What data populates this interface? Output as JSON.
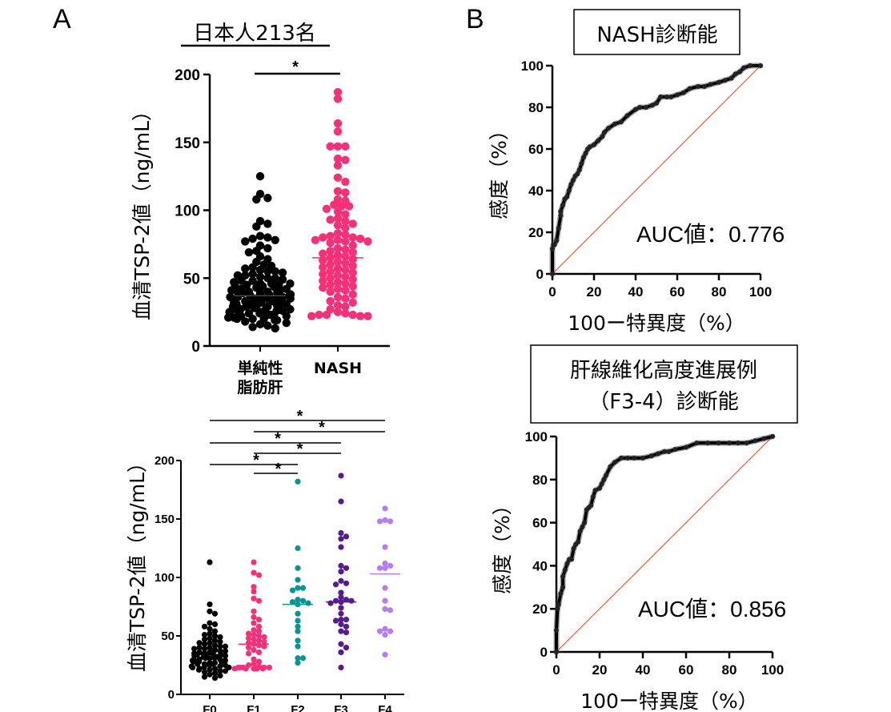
{
  "panel_labels": {
    "a": "A",
    "b": "B"
  },
  "chart_data": [
    {
      "id": "nafld-vs-nash",
      "type": "scatter",
      "title": "日本人213名",
      "xlabel": "",
      "ylabel": "血清TSP-2値（ng/mL）",
      "ylim": [
        0,
        200
      ],
      "yticks": [
        0,
        50,
        100,
        150,
        200
      ],
      "categories": [
        "単純性\n脂肪肝",
        "NASH"
      ],
      "category_lines": [
        [
          "単純性",
          "脂肪肝"
        ],
        [
          "NASH"
        ]
      ],
      "colors": [
        "#000000",
        "#f7307a"
      ],
      "medians": [
        37,
        65
      ],
      "significance": [
        {
          "from": 0,
          "to": 1,
          "label": "*"
        }
      ],
      "series": [
        {
          "name": "単純性脂肪肝",
          "values": [
            125,
            112,
            109,
            108,
            92,
            90,
            88,
            81,
            80,
            79,
            78,
            77,
            74,
            72,
            70,
            69,
            66,
            64,
            62,
            60,
            59,
            58,
            57,
            56,
            55,
            55,
            54,
            53,
            52,
            52,
            51,
            50,
            50,
            49,
            48,
            47,
            46,
            46,
            45,
            45,
            44,
            44,
            43,
            43,
            42,
            42,
            41,
            41,
            40,
            40,
            39,
            39,
            38,
            38,
            38,
            37,
            37,
            36,
            36,
            35,
            35,
            35,
            34,
            34,
            33,
            33,
            33,
            32,
            32,
            31,
            31,
            30,
            30,
            30,
            29,
            29,
            28,
            28,
            28,
            27,
            27,
            26,
            26,
            25,
            25,
            24,
            24,
            23,
            23,
            22,
            22,
            21,
            21,
            20,
            20,
            19,
            19,
            18,
            17,
            16,
            15,
            14,
            13,
            44,
            48,
            36,
            41,
            39,
            34,
            31,
            27,
            25,
            23,
            46,
            42,
            38,
            35,
            32,
            29,
            26,
            22,
            20
          ]
        },
        {
          "name": "NASH",
          "values": [
            187,
            182,
            164,
            158,
            147,
            147,
            147,
            137,
            138,
            133,
            124,
            121,
            114,
            113,
            108,
            107,
            104,
            103,
            103,
            101,
            99,
            97,
            94,
            93,
            92,
            90,
            89,
            87,
            83,
            82,
            81,
            80,
            80,
            79,
            78,
            78,
            77,
            77,
            76,
            74,
            72,
            71,
            70,
            69,
            68,
            67,
            66,
            65,
            64,
            63,
            62,
            61,
            60,
            59,
            58,
            57,
            56,
            55,
            54,
            53,
            52,
            51,
            50,
            49,
            48,
            47,
            46,
            45,
            44,
            43,
            42,
            41,
            40,
            38,
            36,
            35,
            33,
            32,
            30,
            29,
            27,
            25,
            24,
            23,
            23,
            23,
            22,
            22,
            22
          ]
        }
      ]
    },
    {
      "id": "fibrosis-stage",
      "type": "scatter",
      "title": "",
      "xlabel": "",
      "ylabel": "血清TSP-2値（ng/mL）",
      "ylim": [
        0,
        200
      ],
      "yticks": [
        0,
        50,
        100,
        150,
        200
      ],
      "categories": [
        "F0",
        "F1",
        "F2",
        "F3",
        "F4"
      ],
      "colors": [
        "#000000",
        "#f7307a",
        "#089494",
        "#561c8f",
        "#b57ef0"
      ],
      "medians": [
        34,
        43,
        77,
        79,
        103
      ],
      "significance": [
        {
          "from": 0,
          "to": 4,
          "label": "*"
        },
        {
          "from": 1,
          "to": 4,
          "label": "*"
        },
        {
          "from": 0,
          "to": 3,
          "label": "*"
        },
        {
          "from": 1,
          "to": 3,
          "label": "*"
        },
        {
          "from": 0,
          "to": 2,
          "label": "*"
        },
        {
          "from": 1,
          "to": 2,
          "label": "*"
        }
      ],
      "series": [
        {
          "name": "F0",
          "values": [
            113,
            77,
            71,
            69,
            61,
            60,
            58,
            56,
            54,
            52,
            51,
            50,
            49,
            48,
            47,
            46,
            45,
            44,
            43,
            42,
            41,
            40,
            40,
            39,
            38,
            38,
            37,
            36,
            36,
            35,
            35,
            34,
            34,
            33,
            33,
            32,
            32,
            31,
            31,
            30,
            30,
            29,
            29,
            28,
            28,
            27,
            27,
            26,
            26,
            25,
            25,
            24,
            24,
            23,
            23,
            22,
            22,
            21,
            21,
            20,
            19,
            18,
            17,
            16,
            15,
            14,
            44,
            41,
            37,
            35,
            31,
            28,
            26,
            23,
            20,
            39,
            33,
            29
          ]
        },
        {
          "name": "F1",
          "values": [
            113,
            104,
            102,
            92,
            88,
            82,
            80,
            71,
            66,
            64,
            61,
            58,
            55,
            54,
            52,
            51,
            50,
            49,
            48,
            47,
            46,
            45,
            44,
            43,
            42,
            41,
            40,
            38,
            36,
            35,
            30,
            28,
            26,
            25,
            24,
            23,
            23,
            23,
            23,
            22,
            22,
            22,
            22,
            22,
            22,
            23
          ]
        },
        {
          "name": "F2",
          "values": [
            182,
            125,
            108,
            98,
            91,
            91,
            89,
            81,
            80,
            79,
            78,
            77,
            69,
            63,
            58,
            54,
            46,
            41,
            31,
            31,
            27
          ]
        },
        {
          "name": "F3",
          "values": [
            187,
            165,
            138,
            135,
            133,
            126,
            110,
            108,
            105,
            97,
            95,
            94,
            87,
            83,
            81,
            80,
            80,
            79,
            78,
            74,
            69,
            64,
            64,
            63,
            60,
            58,
            54,
            53,
            43,
            40,
            36,
            23
          ]
        },
        {
          "name": "F4",
          "values": [
            159,
            149,
            148,
            148,
            126,
            112,
            110,
            108,
            108,
            91,
            80,
            73,
            72,
            56,
            54,
            54,
            51,
            34
          ]
        }
      ]
    },
    {
      "id": "roc-nash",
      "type": "line",
      "title": "NASH診断能",
      "xlabel": "100ー特異度（%）",
      "ylabel": "感度（%）",
      "xlim": [
        0,
        100
      ],
      "ylim": [
        0,
        100
      ],
      "xticks": [
        0,
        20,
        40,
        60,
        80,
        100
      ],
      "yticks": [
        0,
        20,
        40,
        60,
        80,
        100
      ],
      "annotation": "AUC値：0.776",
      "auc": 0.776,
      "curve_color": "#000000",
      "reference_color": "#ff3b1f",
      "series": [
        {
          "name": "ROC",
          "x": [
            0,
            0,
            0.5,
            1,
            2,
            3,
            4,
            4,
            5,
            6,
            7,
            8,
            9,
            10,
            11,
            12,
            13,
            14,
            15,
            16,
            17,
            18,
            20,
            22,
            24,
            25,
            27,
            30,
            33,
            36,
            40,
            42,
            45,
            48,
            50,
            52,
            55,
            57,
            60,
            63,
            66,
            70,
            73,
            76,
            80,
            83,
            86,
            88,
            90,
            92,
            95,
            100
          ],
          "y": [
            0,
            12,
            14,
            14,
            16,
            22,
            28,
            30,
            33,
            36,
            37,
            40,
            43,
            45,
            47,
            48,
            50,
            53,
            56,
            58,
            60,
            61,
            62,
            64,
            66,
            68,
            70,
            72,
            73,
            76,
            79,
            80,
            80,
            81,
            82,
            85,
            85,
            85,
            86,
            87,
            89,
            90,
            90,
            91,
            92,
            93,
            94,
            96,
            97,
            99,
            100,
            100
          ]
        },
        {
          "name": "Reference",
          "x": [
            0,
            100
          ],
          "y": [
            0,
            100
          ]
        }
      ]
    },
    {
      "id": "roc-f34",
      "type": "line",
      "title": "肝線維化高度進展例（F3-4）診断能",
      "title_lines": [
        "肝線維化高度進展例",
        "（F3-4）診断能"
      ],
      "xlabel": "100ー特異度（%）",
      "ylabel": "感度（%）",
      "xlim": [
        0,
        100
      ],
      "ylim": [
        0,
        100
      ],
      "xticks": [
        0,
        20,
        40,
        60,
        80,
        100
      ],
      "yticks": [
        0,
        20,
        40,
        60,
        80,
        100
      ],
      "annotation": "AUC値：0.856",
      "auc": 0.856,
      "curve_color": "#000000",
      "reference_color": "#ff3b1f",
      "series": [
        {
          "name": "ROC",
          "x": [
            0,
            0,
            0.5,
            1,
            1,
            2,
            3,
            3,
            4,
            5,
            6,
            7,
            8,
            9,
            10,
            11,
            12,
            13,
            14,
            15,
            16,
            17,
            18,
            20,
            21,
            22,
            23,
            25,
            27,
            30,
            33,
            36,
            40,
            44,
            47,
            50,
            52,
            55,
            60,
            65,
            70,
            75,
            80,
            84,
            88,
            92,
            96,
            100
          ],
          "y": [
            0,
            10,
            20,
            22,
            22,
            27,
            30,
            35,
            38,
            41,
            43,
            43,
            48,
            50,
            51,
            56,
            58,
            60,
            66,
            67,
            68,
            72,
            75,
            76,
            78,
            80,
            82,
            86,
            88,
            90,
            90,
            90,
            90,
            91,
            92,
            93,
            93,
            94,
            95,
            97,
            97,
            97,
            97,
            97,
            97,
            98,
            99,
            100
          ]
        },
        {
          "name": "Reference",
          "x": [
            0,
            100
          ],
          "y": [
            0,
            100
          ]
        }
      ]
    }
  ]
}
